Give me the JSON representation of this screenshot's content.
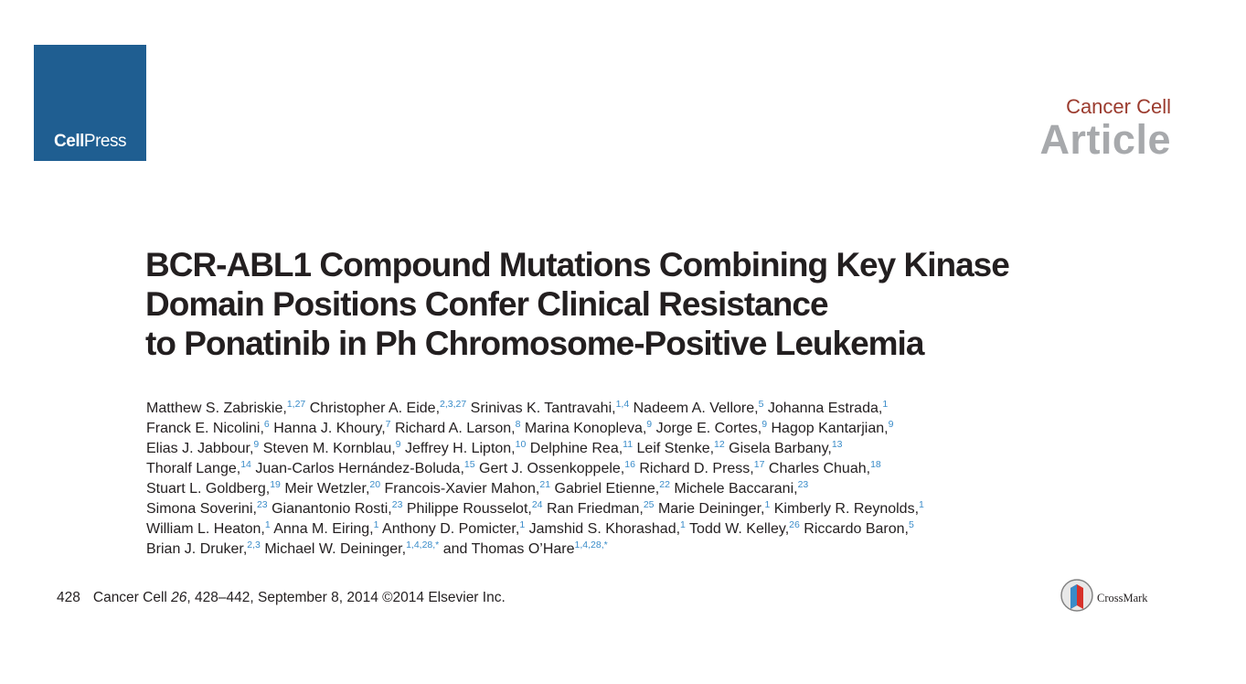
{
  "logo": {
    "cell": "Cell",
    "press": "Press",
    "color": "#1f5e91"
  },
  "header": {
    "journal": "Cancer Cell",
    "article_type": "Article"
  },
  "title_lines": [
    "BCR-ABL1 Compound Mutations Combining Key Kinase",
    "Domain Positions Confer Clinical Resistance",
    "to Ponatinib in Ph Chromosome-Positive Leukemia"
  ],
  "author_lines": [
    [
      {
        "name": "Matthew S. Zabriskie,",
        "aff": "1,27"
      },
      {
        "name": "Christopher A. Eide,",
        "aff": "2,3,27"
      },
      {
        "name": "Srinivas K. Tantravahi,",
        "aff": "1,4"
      },
      {
        "name": "Nadeem A. Vellore,",
        "aff": "5"
      },
      {
        "name": "Johanna Estrada,",
        "aff": "1"
      }
    ],
    [
      {
        "name": "Franck E. Nicolini,",
        "aff": "6"
      },
      {
        "name": "Hanna J. Khoury,",
        "aff": "7"
      },
      {
        "name": "Richard A. Larson,",
        "aff": "8"
      },
      {
        "name": "Marina Konopleva,",
        "aff": "9"
      },
      {
        "name": "Jorge E. Cortes,",
        "aff": "9"
      },
      {
        "name": "Hagop Kantarjian,",
        "aff": "9"
      }
    ],
    [
      {
        "name": "Elias J. Jabbour,",
        "aff": "9"
      },
      {
        "name": "Steven M. Kornblau,",
        "aff": "9"
      },
      {
        "name": "Jeffrey H. Lipton,",
        "aff": "10"
      },
      {
        "name": "Delphine Rea,",
        "aff": "11"
      },
      {
        "name": "Leif Stenke,",
        "aff": "12"
      },
      {
        "name": "Gisela Barbany,",
        "aff": "13"
      }
    ],
    [
      {
        "name": "Thoralf Lange,",
        "aff": "14"
      },
      {
        "name": "Juan-Carlos Hernández-Boluda,",
        "aff": "15"
      },
      {
        "name": "Gert J. Ossenkoppele,",
        "aff": "16"
      },
      {
        "name": "Richard D. Press,",
        "aff": "17"
      },
      {
        "name": "Charles Chuah,",
        "aff": "18"
      }
    ],
    [
      {
        "name": "Stuart L. Goldberg,",
        "aff": "19"
      },
      {
        "name": "Meir Wetzler,",
        "aff": "20"
      },
      {
        "name": "Francois-Xavier Mahon,",
        "aff": "21"
      },
      {
        "name": "Gabriel Etienne,",
        "aff": "22"
      },
      {
        "name": "Michele Baccarani,",
        "aff": "23"
      }
    ],
    [
      {
        "name": "Simona Soverini,",
        "aff": "23"
      },
      {
        "name": "Gianantonio Rosti,",
        "aff": "23"
      },
      {
        "name": "Philippe Rousselot,",
        "aff": "24"
      },
      {
        "name": "Ran Friedman,",
        "aff": "25"
      },
      {
        "name": "Marie Deininger,",
        "aff": "1"
      },
      {
        "name": "Kimberly R. Reynolds,",
        "aff": "1"
      }
    ],
    [
      {
        "name": "William L. Heaton,",
        "aff": "1"
      },
      {
        "name": "Anna M. Eiring,",
        "aff": "1"
      },
      {
        "name": "Anthony D. Pomicter,",
        "aff": "1"
      },
      {
        "name": "Jamshid S. Khorashad,",
        "aff": "1"
      },
      {
        "name": "Todd W. Kelley,",
        "aff": "26"
      },
      {
        "name": "Riccardo Baron,",
        "aff": "5"
      }
    ],
    [
      {
        "name": "Brian J. Druker,",
        "aff": "2,3"
      },
      {
        "name": "Michael W. Deininger,",
        "aff": "1,4,28,*"
      },
      {
        "name": "and Thomas O’Hare",
        "aff": "1,4,28,*"
      }
    ]
  ],
  "footer": {
    "page": "428",
    "journal": "Cancer Cell",
    "volume": "26",
    "rest": ", 428–442, September 8, 2014 ©2014 Elsevier Inc."
  },
  "crossmark": {
    "label": "CrossMark"
  }
}
